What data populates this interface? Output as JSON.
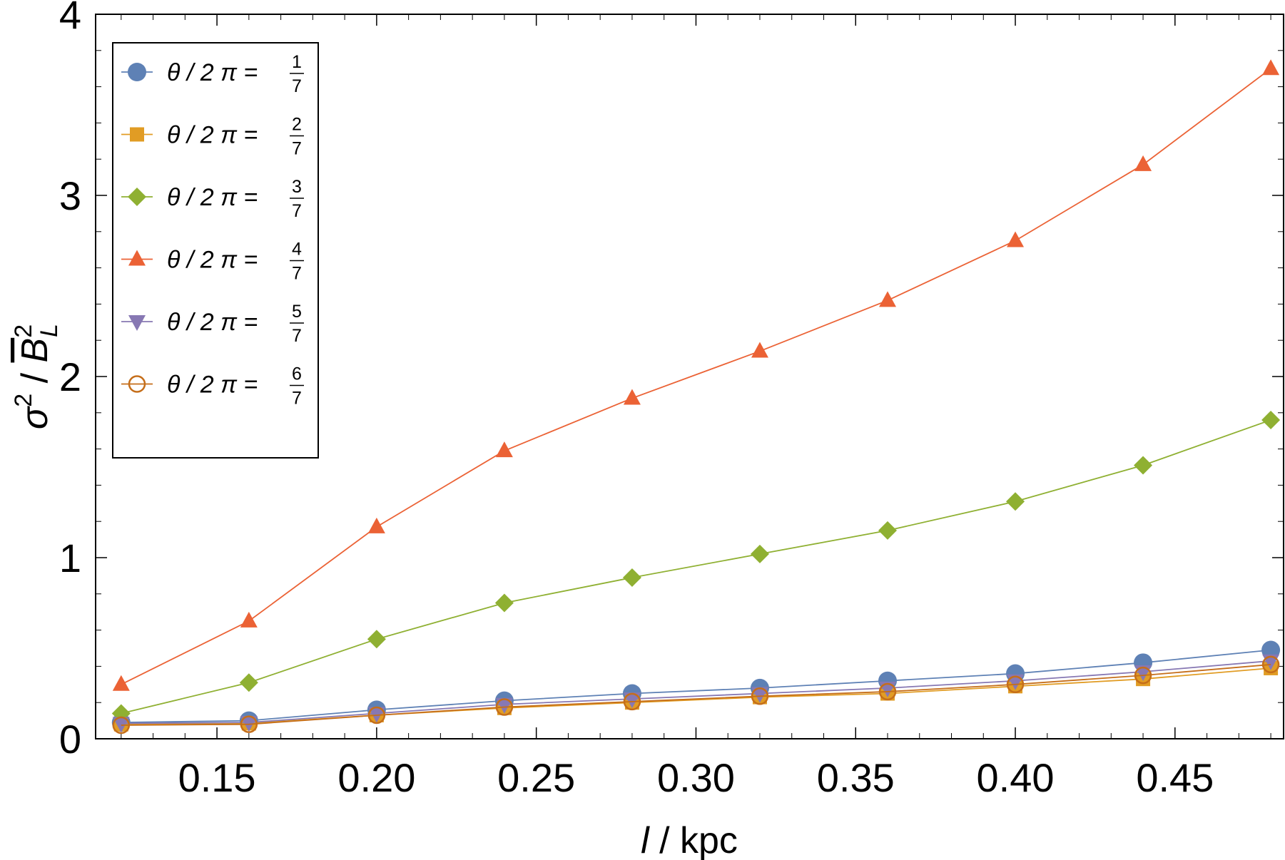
{
  "chart_data": {
    "type": "line",
    "xlabel_var": "l",
    "xlabel_unit": "kpc",
    "ylabel": "σ² / B̄L²",
    "ylabel_sigma": "σ",
    "ylabel_B": "B",
    "ylabel_L": "L",
    "ylabel_exp": "2",
    "xlim": [
      0.112,
      0.484
    ],
    "ylim": [
      0,
      4
    ],
    "x_ticks": [
      "0.15",
      "0.20",
      "0.25",
      "0.30",
      "0.35",
      "0.40",
      "0.45"
    ],
    "x_tick_values": [
      0.15,
      0.2,
      0.25,
      0.3,
      0.35,
      0.4,
      0.45
    ],
    "y_ticks": [
      "0",
      "1",
      "2",
      "3",
      "4"
    ],
    "y_tick_values": [
      0,
      1,
      2,
      3,
      4
    ],
    "grid": false,
    "legend_position": "top-left",
    "x": [
      0.12,
      0.16,
      0.2,
      0.24,
      0.28,
      0.32,
      0.36,
      0.4,
      0.44,
      0.48
    ],
    "series": [
      {
        "legend_prefix": "θ / 2 π =",
        "frac_num": "1",
        "frac_den": "7",
        "color": "#5E81B5",
        "marker": "circle",
        "values": [
          0.09,
          0.1,
          0.16,
          0.21,
          0.25,
          0.28,
          0.32,
          0.36,
          0.42,
          0.49
        ]
      },
      {
        "legend_prefix": "θ / 2 π =",
        "frac_num": "2",
        "frac_den": "7",
        "color": "#E19C24",
        "marker": "square",
        "values": [
          0.08,
          0.085,
          0.13,
          0.17,
          0.2,
          0.23,
          0.25,
          0.29,
          0.33,
          0.39
        ]
      },
      {
        "legend_prefix": "θ / 2 π =",
        "frac_num": "3",
        "frac_den": "7",
        "color": "#8FB032",
        "marker": "diamond",
        "values": [
          0.14,
          0.31,
          0.55,
          0.75,
          0.89,
          1.02,
          1.15,
          1.31,
          1.51,
          1.76
        ]
      },
      {
        "legend_prefix": "θ / 2 π =",
        "frac_num": "4",
        "frac_den": "7",
        "color": "#EB6235",
        "marker": "triangle-up",
        "values": [
          0.3,
          0.65,
          1.17,
          1.59,
          1.88,
          2.14,
          2.42,
          2.75,
          3.17,
          3.7
        ]
      },
      {
        "legend_prefix": "θ / 2 π =",
        "frac_num": "5",
        "frac_den": "7",
        "color": "#8778B3",
        "marker": "triangle-down",
        "values": [
          0.085,
          0.09,
          0.14,
          0.19,
          0.22,
          0.25,
          0.28,
          0.32,
          0.37,
          0.43
        ]
      },
      {
        "legend_prefix": "θ / 2 π =",
        "frac_num": "6",
        "frac_den": "7",
        "color": "#C56E1A",
        "marker": "circle-open",
        "values": [
          0.075,
          0.08,
          0.13,
          0.175,
          0.205,
          0.235,
          0.26,
          0.3,
          0.35,
          0.41
        ]
      }
    ]
  }
}
